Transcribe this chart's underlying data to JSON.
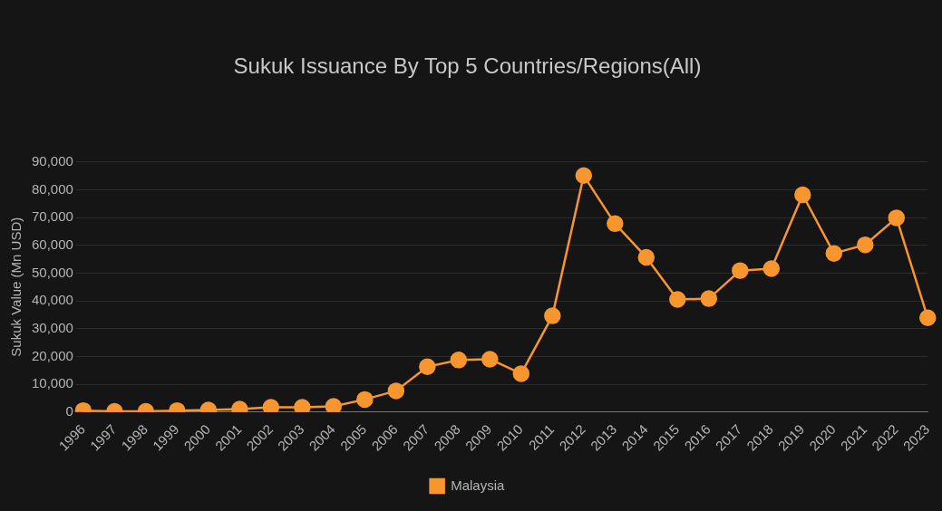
{
  "chart_data": {
    "type": "line",
    "title": "Sukuk Issuance By Top 5 Countries/Regions(All)",
    "ylabel": "Sukuk Value (Mn USD)",
    "categories": [
      "1996",
      "1997",
      "1998",
      "1999",
      "2000",
      "2001",
      "2002",
      "2003",
      "2004",
      "2005",
      "2006",
      "2007",
      "2008",
      "2009",
      "2010",
      "2011",
      "2012",
      "2013",
      "2014",
      "2015",
      "2016",
      "2017",
      "2018",
      "2019",
      "2020",
      "2021",
      "2022",
      "2023"
    ],
    "series": [
      {
        "name": "Malaysia",
        "color": "#f7962e",
        "values": [
          500,
          200,
          200,
          500,
          700,
          1000,
          1700,
          1700,
          2000,
          4500,
          7600,
          16300,
          18700,
          19000,
          13800,
          34600,
          85100,
          67800,
          55700,
          40500,
          40800,
          50900,
          51600,
          78200,
          57100,
          60200,
          69900,
          33900
        ]
      }
    ],
    "ylim": [
      0,
      90000
    ],
    "yticks": [
      {
        "value": 0,
        "label": "0"
      },
      {
        "value": 10000,
        "label": "10,000"
      },
      {
        "value": 20000,
        "label": "20,000"
      },
      {
        "value": 30000,
        "label": "30,000"
      },
      {
        "value": 40000,
        "label": "40,000"
      },
      {
        "value": 50000,
        "label": "50,000"
      },
      {
        "value": 60000,
        "label": "60,000"
      },
      {
        "value": 70000,
        "label": "70,000"
      },
      {
        "value": 80000,
        "label": "80,000"
      },
      {
        "value": 90000,
        "label": "90,000"
      }
    ],
    "grid": "y",
    "legend": "bottom",
    "marker": "circle",
    "line_style": "solid"
  }
}
